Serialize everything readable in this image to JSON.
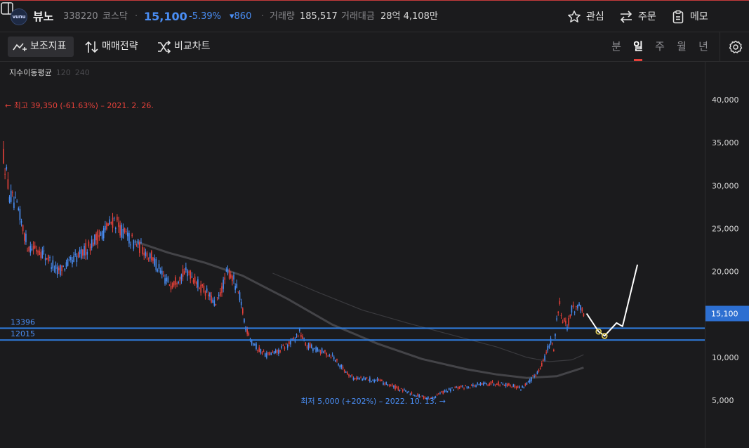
{
  "header": {
    "logo_text": "vunu",
    "name": "뷰노",
    "code": "338220",
    "market": "코스닥",
    "separator": "·",
    "price": "15,100",
    "change_pct": "-5.39%",
    "change_amt": "▾860",
    "volume_label": "거래량",
    "volume_value": "185,517",
    "amount_label": "거래대금",
    "amount_value": "28억 4,108만",
    "buttons": {
      "watch": "관심",
      "order": "주문",
      "memo": "메모"
    }
  },
  "toolbar": {
    "indicators": "보조지표",
    "strategy": "매매전략",
    "compare": "비교차트",
    "periods": [
      "분",
      "일",
      "주",
      "월",
      "년"
    ],
    "active_period": "일"
  },
  "colors": {
    "up": "#e5413a",
    "down": "#4a8ef5",
    "level_line": "#2f7de0",
    "ma": "#444448",
    "user_drawing": "#ffffff",
    "marker": "#e6d35a"
  },
  "chart_data": {
    "type": "candlestick",
    "moving_average_label": "지수이동평균",
    "moving_average_periods": [
      "120",
      "240"
    ],
    "y_ticks": [
      "40,000",
      "35,000",
      "30,000",
      "25,000",
      "20,000",
      "15,000",
      "10,000",
      "5,000"
    ],
    "ylim": [
      2500,
      43500
    ],
    "current_price": {
      "value": 15100,
      "label": "15,100"
    },
    "annotations": {
      "high": {
        "value": 39350,
        "text": "← 최고 39,350 (-61.63%) – 2021. 2. 26."
      },
      "low": {
        "value": 5000,
        "text": "최저 5,000 (+202%) – 2022. 10. 13. →"
      }
    },
    "levels": [
      {
        "value": 13396,
        "label": "13396"
      },
      {
        "value": 12015,
        "label": "12015"
      }
    ],
    "trend_path": [
      [
        0,
        33500
      ],
      [
        4,
        29000
      ],
      [
        10,
        27000
      ],
      [
        16,
        23000
      ],
      [
        24,
        22500
      ],
      [
        30,
        21500
      ],
      [
        36,
        20000
      ],
      [
        44,
        21000
      ],
      [
        52,
        22000
      ],
      [
        60,
        23500
      ],
      [
        66,
        24500
      ],
      [
        74,
        26000
      ],
      [
        80,
        24500
      ],
      [
        86,
        23500
      ],
      [
        94,
        22500
      ],
      [
        100,
        21500
      ],
      [
        106,
        19500
      ],
      [
        112,
        18500
      ],
      [
        118,
        19500
      ],
      [
        124,
        20000
      ],
      [
        130,
        18500
      ],
      [
        136,
        17500
      ],
      [
        142,
        16000
      ],
      [
        150,
        20000
      ],
      [
        154,
        19000
      ],
      [
        158,
        17000
      ],
      [
        162,
        13500
      ],
      [
        166,
        12000
      ],
      [
        170,
        11000
      ],
      [
        176,
        10300
      ],
      [
        182,
        10500
      ],
      [
        188,
        11200
      ],
      [
        194,
        12000
      ],
      [
        198,
        13000
      ],
      [
        202,
        11500
      ],
      [
        208,
        11000
      ],
      [
        214,
        10600
      ],
      [
        220,
        10200
      ],
      [
        228,
        8500
      ],
      [
        234,
        7600
      ],
      [
        242,
        7500
      ],
      [
        250,
        7300
      ],
      [
        258,
        6800
      ],
      [
        266,
        6200
      ],
      [
        274,
        5700
      ],
      [
        280,
        5400
      ],
      [
        286,
        5200
      ],
      [
        292,
        5800
      ],
      [
        298,
        6200
      ],
      [
        306,
        6500
      ],
      [
        314,
        6700
      ],
      [
        322,
        6900
      ],
      [
        330,
        7000
      ],
      [
        338,
        6800
      ],
      [
        346,
        6400
      ],
      [
        352,
        7200
      ],
      [
        358,
        8500
      ],
      [
        362,
        10000
      ],
      [
        366,
        12000
      ],
      [
        368,
        11000
      ],
      [
        370,
        14500
      ],
      [
        372,
        16000
      ],
      [
        374,
        14500
      ],
      [
        377,
        13500
      ],
      [
        380,
        15500
      ],
      [
        384,
        16000
      ],
      [
        388,
        15100
      ]
    ],
    "ma_120": [
      [
        88,
        23500
      ],
      [
        110,
        22200
      ],
      [
        135,
        21000
      ],
      [
        160,
        19500
      ],
      [
        190,
        16800
      ],
      [
        220,
        13800
      ],
      [
        250,
        11600
      ],
      [
        280,
        9800
      ],
      [
        310,
        8600
      ],
      [
        330,
        8000
      ],
      [
        350,
        7600
      ],
      [
        370,
        7800
      ],
      [
        388,
        8800
      ]
    ],
    "ma_240": [
      [
        180,
        19800
      ],
      [
        210,
        17600
      ],
      [
        240,
        15500
      ],
      [
        270,
        14000
      ],
      [
        300,
        12600
      ],
      [
        330,
        11200
      ],
      [
        350,
        10000
      ],
      [
        365,
        9500
      ],
      [
        380,
        9700
      ],
      [
        388,
        10300
      ]
    ],
    "user_drawing": [
      [
        390,
        15100
      ],
      [
        398,
        13000
      ],
      [
        402,
        12500
      ],
      [
        410,
        14000
      ],
      [
        414,
        13600
      ],
      [
        424,
        20800
      ]
    ],
    "markers": [
      [
        398,
        13000
      ],
      [
        402,
        12500
      ]
    ]
  }
}
